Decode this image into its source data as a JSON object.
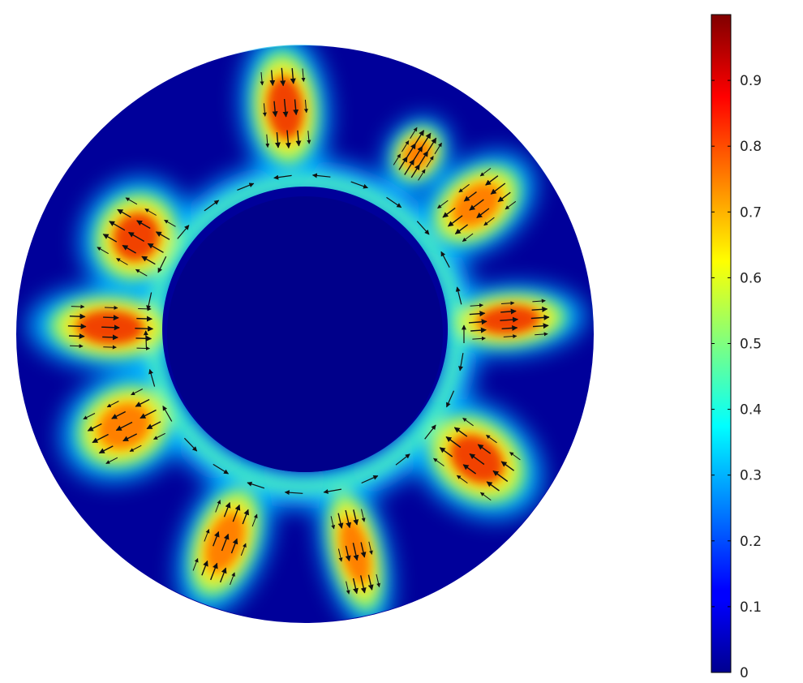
{
  "chart_data": {
    "type": "heatmap",
    "title": "",
    "colorbar": {
      "colormap": "jet",
      "range": [
        0,
        1
      ],
      "ticks": [
        0,
        0.1,
        0.2,
        0.3,
        0.4,
        0.5,
        0.6,
        0.7,
        0.8,
        0.9
      ],
      "tick_labels": [
        "0",
        "0.1",
        "0.2",
        "0.3",
        "0.4",
        "0.5",
        "0.6",
        "0.7",
        "0.8",
        "0.9"
      ],
      "placement": "right"
    },
    "domain": "annulus",
    "arrows": "velocity field overlay (black arrows)",
    "hotspots": [
      {
        "label": "upper-left lobe",
        "peak": 0.82
      },
      {
        "label": "top lobe",
        "peak": 0.78
      },
      {
        "label": "upper-right small lobe",
        "peak": 0.55
      },
      {
        "label": "upper-right lobe",
        "peak": 0.75
      },
      {
        "label": "right lobe",
        "peak": 0.8
      },
      {
        "label": "lower-right lobe",
        "peak": 0.8
      },
      {
        "label": "bottom lobe",
        "peak": 0.7
      },
      {
        "label": "lower-left lobe",
        "peak": 0.75
      },
      {
        "label": "left-lower lobe",
        "peak": 0.72
      },
      {
        "label": "left lobe",
        "peak": 0.85
      }
    ]
  }
}
